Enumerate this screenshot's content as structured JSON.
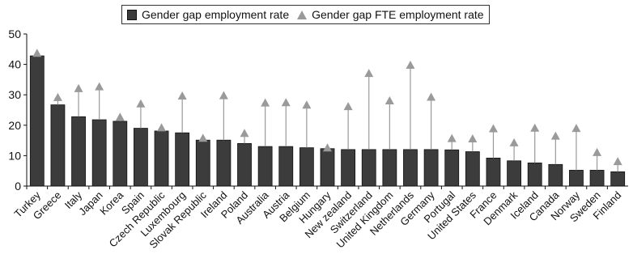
{
  "chart_data": {
    "type": "bar",
    "title": "",
    "xlabel": "",
    "ylabel": "",
    "ylim": [
      0,
      50
    ],
    "yticks": [
      0,
      10,
      20,
      30,
      40,
      50
    ],
    "grid": false,
    "legend_position": "top",
    "categories": [
      "Turkey",
      "Greece",
      "Italy",
      "Japan",
      "Korea",
      "Spain",
      "Czech Republic",
      "Luxembourg",
      "Slovak Republic",
      "Ireland",
      "Poland",
      "Australia",
      "Austria",
      "Belgium",
      "Hungary",
      "New zealand",
      "Switzerland",
      "United Kingdom",
      "Netherlands",
      "Germany",
      "Portugal",
      "United States",
      "France",
      "Denmark",
      "Iceland",
      "Canada",
      "Norway",
      "Sweden",
      "Finland"
    ],
    "series": [
      {
        "name": "Gender gap employment rate",
        "marker": "bar",
        "color": "#3c3c3c",
        "values": [
          42.8,
          26.7,
          22.8,
          21.8,
          21.3,
          19.0,
          18.1,
          17.5,
          15.1,
          15.1,
          14.0,
          13.0,
          13.0,
          12.6,
          12.3,
          12.0,
          12.0,
          12.0,
          12.0,
          12.0,
          11.9,
          11.3,
          9.2,
          8.3,
          7.6,
          7.1,
          5.2,
          5.2,
          4.7
        ]
      },
      {
        "name": "Gender gap FTE employment rate",
        "marker": "triangle",
        "color": "#9a9a9a",
        "values": [
          43.8,
          29.3,
          32.2,
          32.8,
          22.8,
          27.2,
          19.3,
          29.8,
          15.9,
          29.9,
          17.5,
          27.5,
          27.6,
          26.8,
          12.7,
          26.3,
          37.2,
          28.2,
          39.9,
          29.4,
          15.8,
          15.7,
          19.0,
          14.4,
          19.2,
          16.6,
          19.1,
          11.2,
          8.2
        ]
      }
    ]
  }
}
